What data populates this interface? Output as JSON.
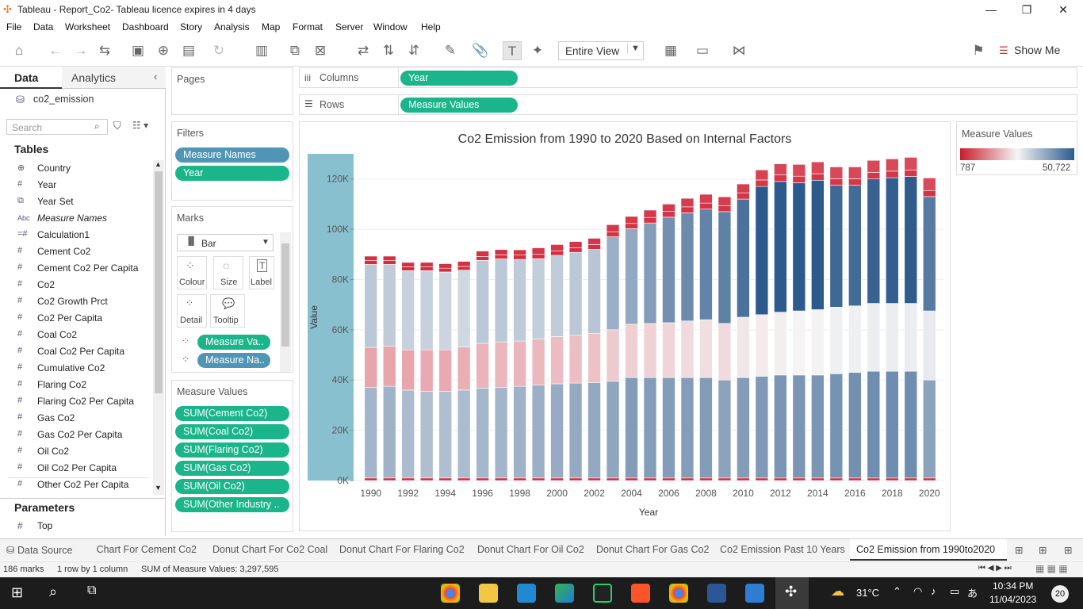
{
  "window": {
    "title": "Tableau - Report_Co2- Tableau licence expires in 4 days"
  },
  "menu": [
    "File",
    "Data",
    "Worksheet",
    "Dashboard",
    "Story",
    "Analysis",
    "Map",
    "Format",
    "Server",
    "Window",
    "Help"
  ],
  "toolbar": {
    "view_select": "Entire View",
    "show_me": "Show Me"
  },
  "left": {
    "tab_data": "Data",
    "tab_analytics": "Analytics",
    "datasource": "co2_emission",
    "search_placeholder": "Search",
    "tables_label": "Tables",
    "fields": [
      {
        "icon": "globe",
        "label": "Country"
      },
      {
        "icon": "#",
        "label": "Year"
      },
      {
        "icon": "set",
        "label": "Year Set"
      },
      {
        "icon": "Abc",
        "label": "Measure Names"
      },
      {
        "icon": "calc",
        "label": "Calculation1"
      },
      {
        "icon": "#",
        "label": "Cement Co2"
      },
      {
        "icon": "#",
        "label": "Cement Co2 Per Capita"
      },
      {
        "icon": "#",
        "label": "Co2"
      },
      {
        "icon": "#",
        "label": "Co2 Growth Prct"
      },
      {
        "icon": "#",
        "label": "Co2 Per Capita"
      },
      {
        "icon": "#",
        "label": "Coal Co2"
      },
      {
        "icon": "#",
        "label": "Coal Co2 Per Capita"
      },
      {
        "icon": "#",
        "label": "Cumulative Co2"
      },
      {
        "icon": "#",
        "label": "Flaring Co2"
      },
      {
        "icon": "#",
        "label": "Flaring Co2 Per Capita"
      },
      {
        "icon": "#",
        "label": "Gas Co2"
      },
      {
        "icon": "#",
        "label": "Gas Co2 Per Capita"
      },
      {
        "icon": "#",
        "label": "Oil Co2"
      },
      {
        "icon": "#",
        "label": "Oil Co2 Per Capita"
      },
      {
        "icon": "#",
        "label": "Other Co2 Per Capita"
      }
    ],
    "parameters_label": "Parameters",
    "param": "Top"
  },
  "shelves": {
    "pages": "Pages",
    "filters": "Filters",
    "filter_pills": [
      "Measure Names",
      "Year"
    ],
    "marks": "Marks",
    "mark_type": "Bar",
    "mark_buttons": [
      "Colour",
      "Size",
      "Label",
      "Detail",
      "Tooltip"
    ],
    "mark_pills": [
      "Measure Va..",
      "Measure Na.."
    ],
    "measure_values": "Measure Values",
    "mv_pills": [
      "SUM(Cement Co2)",
      "SUM(Coal Co2)",
      "SUM(Flaring Co2)",
      "SUM(Gas Co2)",
      "SUM(Oil Co2)",
      "SUM(Other Industry .."
    ],
    "columns": "Columns",
    "rows": "Rows",
    "col_pill": "Year",
    "row_pill": "Measure Values"
  },
  "legend": {
    "title": "Measure Values",
    "min": "787",
    "max": "50,722"
  },
  "sheet_tabs": [
    "Data Source",
    "Chart For Cement Co2",
    "Donut Chart For Co2 Coal",
    "Donut Chart For Flaring Co2",
    "Donut Chart For Oil Co2",
    "Donut Chart For Gas Co2",
    "Co2 Emission Past 10 Years",
    "Co2 Emission from 1990to2020"
  ],
  "status": {
    "marks": "186 marks",
    "rows": "1 row by 1 column",
    "sum": "SUM of Measure Values: 3,297,595"
  },
  "taskbar": {
    "weather": "31°C",
    "time": "10:34 PM",
    "date": "11/04/2023",
    "notif": "20"
  },
  "chart_data": {
    "type": "bar",
    "title": "Co2 Emission from 1990 to 2020 Based on Internal Factors",
    "xlabel": "Year",
    "ylabel": "Value",
    "ylim": [
      0,
      130000
    ],
    "yticks": [
      "0K",
      "20K",
      "40K",
      "60K",
      "80K",
      "100K",
      "120K"
    ],
    "categories": [
      1990,
      1991,
      1992,
      1993,
      1994,
      1995,
      1996,
      1997,
      1998,
      1999,
      2000,
      2001,
      2002,
      2003,
      2004,
      2005,
      2006,
      2007,
      2008,
      2009,
      2010,
      2011,
      2012,
      2013,
      2014,
      2015,
      2016,
      2017,
      2018,
      2019,
      2020
    ],
    "x_tick_labels": [
      "1990",
      "1992",
      "1994",
      "1996",
      "1998",
      "2000",
      "2002",
      "2004",
      "2006",
      "2008",
      "2010",
      "2012",
      "2014",
      "2016",
      "2018",
      "2020"
    ],
    "series": [
      {
        "name": "Flaring Co2",
        "values": [
          1000,
          1000,
          1000,
          1000,
          1000,
          1000,
          1000,
          1000,
          1000,
          1000,
          1000,
          1000,
          1000,
          1000,
          1000,
          1000,
          1000,
          1000,
          1000,
          1000,
          1000,
          1000,
          1000,
          1000,
          1000,
          1000,
          1000,
          1000,
          1000,
          1000,
          1000
        ]
      },
      {
        "name": "Coal Co2",
        "values": [
          36000,
          36500,
          35000,
          34500,
          34500,
          35000,
          35800,
          36000,
          36500,
          37000,
          37500,
          37800,
          38000,
          38500,
          40000,
          40000,
          40000,
          40000,
          40000,
          39000,
          40000,
          40500,
          41000,
          41000,
          41000,
          41500,
          42000,
          42500,
          42500,
          42500,
          39000
        ]
      },
      {
        "name": "Oil Co2",
        "values": [
          16000,
          16000,
          16000,
          16500,
          16500,
          17200,
          17800,
          18200,
          18000,
          18300,
          18800,
          19000,
          19500,
          20500,
          21200,
          21500,
          21800,
          22500,
          23000,
          22500,
          24000,
          24500,
          25000,
          25500,
          26000,
          26500,
          26500,
          27000,
          27000,
          27000,
          27500
        ]
      },
      {
        "name": "Gas Co2",
        "values": [
          33000,
          32500,
          31500,
          31500,
          31000,
          30500,
          33000,
          33000,
          32500,
          32000,
          32300,
          33000,
          33500,
          37000,
          38000,
          40000,
          42000,
          43000,
          44000,
          44500,
          47000,
          51000,
          52000,
          51000,
          51500,
          48500,
          48000,
          49500,
          50000,
          50500,
          45500
        ]
      },
      {
        "name": "Cement Co2",
        "values": [
          1500,
          1500,
          1500,
          1500,
          1500,
          1500,
          1600,
          1600,
          1700,
          1700,
          1700,
          1800,
          1900,
          2000,
          2100,
          2200,
          2300,
          2400,
          2400,
          2400,
          2500,
          2600,
          2600,
          2600,
          2600,
          2600,
          2600,
          2600,
          2600,
          2600,
          2400
        ]
      },
      {
        "name": "Other Industry Co2",
        "values": [
          1800,
          1800,
          1800,
          1800,
          1800,
          2000,
          2100,
          2100,
          2100,
          2600,
          2600,
          2500,
          2500,
          2800,
          2800,
          2900,
          2900,
          3400,
          3500,
          3500,
          3500,
          4000,
          4400,
          4700,
          4700,
          4700,
          4700,
          4800,
          4900,
          5000,
          5000
        ]
      }
    ],
    "color_scale": {
      "min": 787,
      "max": 50722,
      "low": "#d1283b",
      "mid": "#f5f5f5",
      "high": "#2d5a8c"
    }
  }
}
